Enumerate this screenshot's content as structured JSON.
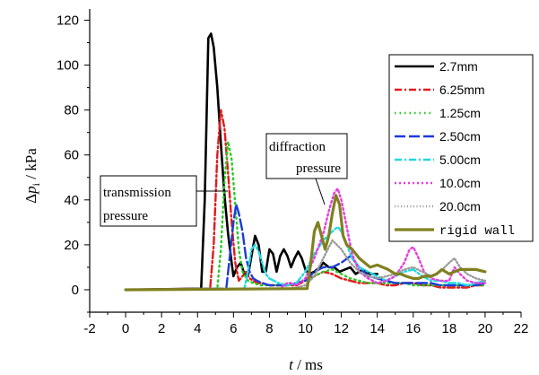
{
  "chart_data": {
    "type": "line",
    "xlabel_var": "t",
    "xlabel_unit": " / ms",
    "ylabel_prefix": "Δ",
    "ylabel_var": "p",
    "ylabel_sub": "i",
    "ylabel_unit": " / kPa",
    "xlim": [
      -2,
      22
    ],
    "ylim": [
      -10,
      125
    ],
    "x_ticks": [
      "-2",
      "0",
      "2",
      "4",
      "6",
      "8",
      "10",
      "12",
      "14",
      "16",
      "18",
      "20",
      "22"
    ],
    "y_ticks": [
      "0",
      "20",
      "40",
      "60",
      "80",
      "100",
      "120"
    ],
    "legend_position": "right",
    "annotations": {
      "transmission": [
        "transmission",
        "pressure"
      ],
      "diffraction": [
        "diffraction",
        "pressure"
      ]
    },
    "series": [
      {
        "name": "2.7mm",
        "color": "#000000",
        "dash": "",
        "x": [
          0,
          4.2,
          4.4,
          4.6,
          4.75,
          4.9,
          5.1,
          5.3,
          5.5,
          5.7,
          5.9,
          6.0,
          6.2,
          6.4,
          6.6,
          6.8,
          7.0,
          7.2,
          7.4,
          7.6,
          7.8,
          8.0,
          8.2,
          8.4,
          8.6,
          8.8,
          9.0,
          9.2,
          9.4,
          9.6,
          9.8,
          10.0,
          10.2,
          10.5,
          10.8,
          11.0,
          11.3,
          11.6,
          11.9,
          12.2,
          12.5,
          12.8,
          13.2,
          13.6,
          14.0
        ],
        "y": [
          0,
          0.5,
          40,
          112,
          114,
          108,
          90,
          65,
          42,
          25,
          12,
          6,
          10,
          12,
          7,
          6,
          15,
          24,
          20,
          8,
          8,
          18,
          16,
          8,
          15,
          18,
          15,
          10,
          14,
          17,
          14,
          9,
          7,
          8,
          10,
          12,
          10,
          10,
          8,
          9,
          10,
          7,
          9,
          7,
          7
        ]
      },
      {
        "name": "6.25mm",
        "color": "#e31a1c",
        "dash": "8,3,2,3",
        "x": [
          0,
          4.7,
          4.9,
          5.1,
          5.3,
          5.5,
          5.7,
          5.9,
          6.1,
          6.3,
          6.5,
          6.7,
          6.9,
          7.1,
          7.3,
          7.6,
          8.0,
          8.5,
          9.0,
          9.5,
          10.0,
          10.5,
          11.0,
          11.5,
          12.0,
          12.5,
          13.0,
          13.5,
          14.0,
          14.5,
          15.0,
          15.5,
          16.0,
          16.5,
          17.0,
          17.5,
          18.0,
          18.5,
          19.0,
          19.5,
          20.0
        ],
        "y": [
          0,
          0.5,
          20,
          60,
          80,
          72,
          52,
          30,
          12,
          4,
          6,
          8,
          5,
          4,
          3,
          3,
          2,
          2,
          2,
          2,
          4,
          6,
          8,
          7,
          5,
          4,
          3,
          3,
          3,
          2,
          2,
          3,
          3,
          2,
          2,
          1,
          1,
          1,
          1,
          2,
          2
        ]
      },
      {
        "name": "1.25cm",
        "color": "#22cc22",
        "dash": "1.5,4",
        "x": [
          0,
          5.1,
          5.3,
          5.5,
          5.7,
          5.9,
          6.1,
          6.3,
          6.5,
          6.8,
          7.1,
          7.5,
          8.0,
          8.5,
          9.0,
          9.5,
          10.0,
          10.5,
          11.0,
          11.5,
          12.0,
          12.5,
          13.0,
          13.5,
          14.0,
          14.5,
          15.0,
          15.5,
          16.0,
          16.5,
          17.0,
          17.5,
          18.0,
          18.5,
          19.0,
          19.5,
          20.0
        ],
        "y": [
          0,
          0.5,
          18,
          48,
          66,
          58,
          38,
          18,
          8,
          4,
          3,
          2,
          2,
          2,
          2,
          3,
          4,
          6,
          8,
          9,
          7,
          5,
          4,
          3,
          3,
          3,
          3,
          3,
          2,
          2,
          2,
          2,
          2,
          2,
          2,
          2,
          2
        ]
      },
      {
        "name": "2.50cm",
        "color": "#1c3bd9",
        "dash": "12,4",
        "x": [
          0,
          5.6,
          5.8,
          6.0,
          6.15,
          6.3,
          6.5,
          6.7,
          6.9,
          7.1,
          7.3,
          7.6,
          8.0,
          8.5,
          9.0,
          9.5,
          10.0,
          10.5,
          11.0,
          11.5,
          12.0,
          12.5,
          13.0,
          13.5,
          14.0,
          14.5,
          15.0,
          15.5,
          16.0,
          16.5,
          17.0,
          17.5,
          18.0,
          18.5,
          19.0,
          19.5,
          20.0
        ],
        "y": [
          0,
          0.5,
          15,
          30,
          38,
          34,
          26,
          14,
          8,
          5,
          4,
          3,
          2,
          2,
          2,
          3,
          4,
          8,
          10,
          10,
          12,
          15,
          10,
          6,
          5,
          4,
          3,
          3,
          3,
          3,
          3,
          2,
          2,
          2,
          2,
          2,
          3
        ]
      },
      {
        "name": "5.00cm",
        "color": "#22d8e0",
        "dash": "8,3,2,3",
        "x": [
          0,
          6.6,
          6.8,
          7.0,
          7.2,
          7.4,
          7.6,
          7.8,
          8.0,
          8.5,
          9.0,
          9.5,
          10.0,
          10.5,
          11.0,
          11.5,
          11.8,
          12.0,
          12.3,
          12.6,
          13.0,
          13.5,
          14.0,
          14.5,
          15.0,
          15.5,
          16.0,
          16.5,
          17.0,
          17.5,
          18.0,
          18.5,
          19.0,
          19.5,
          20.0
        ],
        "y": [
          0,
          0.5,
          8,
          18,
          20,
          17,
          12,
          7,
          5,
          3,
          2,
          3,
          8,
          16,
          22,
          26,
          28,
          26,
          20,
          14,
          10,
          8,
          6,
          4,
          6,
          8,
          9,
          6,
          4,
          4,
          3,
          3,
          2,
          3,
          4
        ]
      },
      {
        "name": "10.0cm",
        "color": "#e83ce0",
        "dash": "2,3",
        "x": [
          0,
          8.6,
          8.8,
          9.0,
          9.2,
          9.5,
          10.0,
          10.5,
          11.0,
          11.3,
          11.6,
          11.8,
          12.0,
          12.3,
          12.6,
          13.0,
          13.5,
          14.0,
          14.5,
          15.0,
          15.5,
          15.8,
          16.0,
          16.3,
          16.6,
          17.0,
          17.5,
          18.0,
          18.3,
          18.6,
          19.0,
          19.5,
          20.0
        ],
        "y": [
          0,
          0.5,
          2,
          3,
          3,
          2,
          5,
          14,
          25,
          35,
          43,
          45,
          40,
          28,
          16,
          8,
          5,
          3,
          4,
          6,
          12,
          18,
          19,
          14,
          8,
          5,
          4,
          4,
          10,
          7,
          4,
          3,
          3
        ]
      },
      {
        "name": "20.0cm",
        "color": "#9a9a9a",
        "dash": "1,2.5",
        "x": [
          0,
          9.0,
          9.5,
          10.0,
          10.5,
          11.0,
          11.5,
          12.0,
          12.5,
          13.0,
          13.5,
          14.0,
          14.5,
          15.0,
          15.5,
          16.0,
          16.5,
          17.0,
          17.5,
          18.0,
          18.3,
          18.6,
          19.0,
          19.5,
          20.0
        ],
        "y": [
          0,
          0.5,
          1,
          2,
          6,
          14,
          22,
          18,
          12,
          8,
          6,
          5,
          6,
          7,
          9,
          10,
          8,
          6,
          8,
          12,
          14,
          10,
          7,
          5,
          4
        ]
      },
      {
        "name": "rigid wall",
        "color": "#808020",
        "dash": "",
        "x": [
          0,
          10.1,
          10.3,
          10.5,
          10.7,
          10.9,
          11.1,
          11.3,
          11.5,
          11.7,
          11.9,
          12.1,
          12.3,
          12.6,
          13.0,
          13.3,
          13.6,
          14.0,
          14.3,
          14.6,
          15.0,
          15.3,
          15.6,
          16.0,
          16.3,
          16.6,
          17.0,
          17.3,
          17.6,
          18.0,
          18.3,
          18.6,
          19.0,
          19.5,
          20.0
        ],
        "y": [
          0,
          0.5,
          12,
          26,
          30,
          24,
          18,
          24,
          34,
          42,
          38,
          24,
          20,
          18,
          14,
          12,
          10,
          11,
          10,
          9,
          7,
          7,
          6,
          5,
          5,
          6,
          6,
          7,
          9,
          7,
          8,
          9,
          9,
          9,
          8
        ]
      }
    ]
  }
}
